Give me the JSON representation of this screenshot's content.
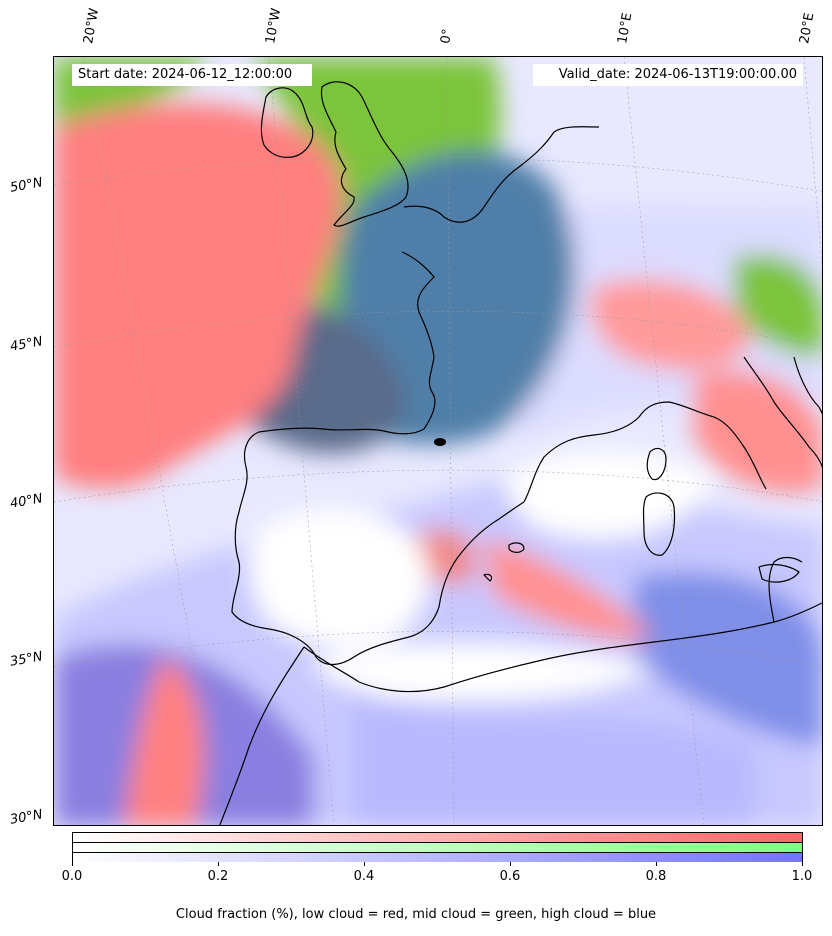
{
  "header": {
    "start_label": "Start date: 2024-06-12_12:00:00",
    "valid_label": "Valid_date: 2024-06-13T19:00:00.00"
  },
  "longitude_labels": [
    "20°W",
    "10°W",
    "0°",
    "10°E",
    "20°E"
  ],
  "latitude_labels": [
    "50°N",
    "45°N",
    "40°N",
    "35°N",
    "30°N"
  ],
  "colorbar": {
    "ticks": [
      "0.0",
      "0.2",
      "0.4",
      "0.6",
      "0.8",
      "1.0"
    ],
    "low_color": "#ff6666",
    "mid_color": "#80ff80",
    "high_color": "#7373ff",
    "caption": "Cloud fraction (%), low cloud = red, mid cloud = green, high cloud = blue"
  },
  "layers": {
    "low_cloud_color": "#ff7f7f",
    "mid_cloud_color": "#7cc43a",
    "high_cloud_color": "#8080ff",
    "coastline_color": "#000000"
  }
}
